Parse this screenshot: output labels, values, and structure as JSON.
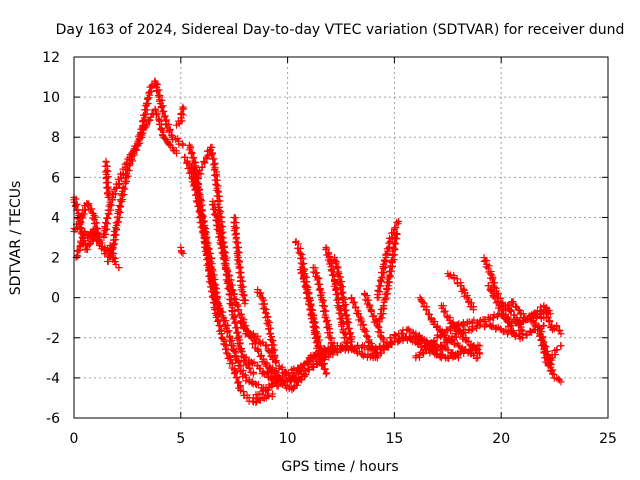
{
  "chart_data": {
    "type": "scatter",
    "title": "Day 163 of 2024, Sidereal Day-to-day VTEC variation (SDTVAR) for receiver dund",
    "xlabel": "GPS time / hours",
    "ylabel": "SDTVAR / TECUs",
    "xlim": [
      0,
      25
    ],
    "ylim": [
      -6,
      12
    ],
    "xticks": [
      0,
      5,
      10,
      15,
      20,
      25
    ],
    "yticks": [
      -6,
      -4,
      -2,
      0,
      2,
      4,
      6,
      8,
      10,
      12
    ],
    "grid": true,
    "marker": "+",
    "series": [
      {
        "name": "SDTVAR",
        "color": "#ff0000",
        "tracks": [
          {
            "x": [
              0.0,
              0.3,
              0.6,
              0.9,
              1.2,
              1.5,
              1.7,
              1.9,
              2.1
            ],
            "y": [
              3.3,
              3.8,
              4.7,
              4.2,
              2.8,
              2.2,
              2.6,
              1.8,
              1.5
            ]
          },
          {
            "x": [
              0.0,
              0.2,
              0.4,
              0.6,
              0.8,
              1.0,
              1.2
            ],
            "y": [
              5.0,
              4.2,
              3.0,
              2.4,
              2.8,
              3.2,
              2.6
            ]
          },
          {
            "x": [
              0.1,
              0.3,
              0.5,
              0.7,
              0.9,
              1.1
            ],
            "y": [
              2.0,
              2.6,
              3.3,
              3.0,
              3.4,
              2.9
            ]
          },
          {
            "x": [
              1.4,
              1.6,
              1.8,
              2.0,
              2.2,
              2.4,
              2.6,
              2.8,
              3.0,
              3.2,
              3.4,
              3.6,
              3.8,
              4.0,
              4.3,
              4.6,
              4.9,
              5.1
            ],
            "y": [
              3.0,
              4.2,
              5.0,
              5.5,
              6.0,
              6.5,
              7.0,
              7.3,
              7.8,
              8.5,
              9.6,
              10.5,
              10.8,
              10.0,
              8.8,
              8.0,
              7.8,
              7.6
            ]
          },
          {
            "x": [
              1.6,
              1.8,
              2.0,
              2.2,
              2.4,
              2.6,
              2.8,
              3.0,
              3.2,
              3.4,
              3.6,
              3.8,
              4.0,
              4.2,
              4.5,
              4.8
            ],
            "y": [
              1.8,
              2.4,
              3.6,
              4.8,
              5.8,
              6.6,
              7.2,
              7.6,
              8.2,
              8.6,
              9.0,
              9.4,
              8.8,
              8.0,
              7.6,
              7.2
            ]
          },
          {
            "x": [
              1.5,
              1.6
            ],
            "y": [
              6.8,
              5.0
            ]
          },
          {
            "x": [
              4.8,
              5.0,
              5.1
            ],
            "y": [
              8.6,
              8.8,
              9.5
            ]
          },
          {
            "x": [
              5.0,
              5.1
            ],
            "y": [
              2.5,
              2.2
            ]
          },
          {
            "x": [
              5.2,
              5.5,
              5.8,
              6.1,
              6.4,
              6.7,
              7.0,
              7.3,
              7.6,
              7.9,
              8.2,
              8.5,
              8.8,
              9.1
            ],
            "y": [
              7.0,
              6.2,
              4.8,
              3.0,
              1.2,
              -0.2,
              -1.0,
              -2.0,
              -3.0,
              -3.8,
              -4.2,
              -4.3,
              -4.5,
              -4.6
            ]
          },
          {
            "x": [
              5.4,
              5.7,
              6.0,
              6.3,
              6.6,
              6.9,
              7.2,
              7.5,
              7.8,
              8.1,
              8.4,
              8.7,
              9.0,
              9.3
            ],
            "y": [
              7.6,
              6.5,
              4.0,
              1.5,
              -0.5,
              -1.8,
              -2.8,
              -3.6,
              -4.6,
              -5.0,
              -5.2,
              -5.1,
              -5.0,
              -4.8
            ]
          },
          {
            "x": [
              5.5,
              5.8,
              6.1,
              6.4,
              6.6,
              6.8
            ],
            "y": [
              6.5,
              5.5,
              3.5,
              1.8,
              0.5,
              -0.8
            ]
          },
          {
            "x": [
              5.8,
              6.0,
              6.2,
              6.4,
              6.6,
              6.8,
              7.0,
              7.2,
              7.4,
              7.6,
              7.8,
              8.0,
              8.2,
              8.4
            ],
            "y": [
              6.0,
              6.5,
              7.0,
              7.5,
              6.5,
              4.5,
              2.5,
              0.8,
              -0.5,
              -1.5,
              -2.6,
              -3.2,
              -3.5,
              -3.8
            ]
          },
          {
            "x": [
              6.5,
              6.8,
              7.1,
              7.4,
              7.7,
              8.0,
              8.3,
              8.6,
              8.9,
              9.2,
              9.5,
              9.8
            ],
            "y": [
              4.8,
              3.2,
              1.6,
              0.4,
              -0.6,
              -1.4,
              -2.0,
              -2.6,
              -3.2,
              -3.6,
              -4.0,
              -4.2
            ]
          },
          {
            "x": [
              7.5,
              7.6,
              7.7,
              7.8,
              7.9,
              8.0
            ],
            "y": [
              4.0,
              3.0,
              2.0,
              1.0,
              0.3,
              -0.3
            ]
          },
          {
            "x": [
              7.8,
              8.1,
              8.4,
              8.7,
              9.0,
              9.3,
              9.6,
              9.9,
              10.2,
              10.5
            ],
            "y": [
              -1.2,
              -1.8,
              -1.8,
              -2.2,
              -2.4,
              -3.0,
              -3.4,
              -3.8,
              -4.0,
              -4.2
            ]
          },
          {
            "x": [
              8.6,
              8.8,
              9.0,
              9.2,
              9.4
            ],
            "y": [
              0.4,
              0.0,
              -0.8,
              -1.8,
              -3.0
            ]
          },
          {
            "x": [
              8.0,
              8.3,
              8.6,
              8.9,
              9.2,
              9.5,
              9.8,
              10.1,
              10.4,
              10.7,
              11.0,
              11.3
            ],
            "y": [
              -3.0,
              -3.2,
              -3.4,
              -3.8,
              -4.0,
              -4.4,
              -4.2,
              -4.0,
              -3.8,
              -3.5,
              -3.2,
              -3.0
            ]
          },
          {
            "x": [
              8.4,
              8.7,
              9.0,
              9.3,
              9.6,
              9.9,
              10.2,
              10.5,
              10.8,
              11.1,
              11.4,
              11.7,
              12.0
            ],
            "y": [
              -5.0,
              -4.8,
              -4.6,
              -4.3,
              -4.0,
              -3.8,
              -3.6,
              -3.5,
              -3.3,
              -3.0,
              -2.8,
              -2.6,
              -2.5
            ]
          },
          {
            "x": [
              9.0,
              9.3,
              9.6,
              9.9,
              10.2,
              10.5,
              10.8
            ],
            "y": [
              -3.8,
              -3.5,
              -4.0,
              -4.4,
              -4.6,
              -4.2,
              -3.9
            ]
          },
          {
            "x": [
              10.4,
              10.6,
              10.8,
              11.0,
              11.2,
              11.4,
              11.6,
              11.8
            ],
            "y": [
              2.8,
              2.2,
              1.2,
              0.0,
              -1.0,
              -2.0,
              -3.0,
              -3.8
            ]
          },
          {
            "x": [
              10.6,
              10.8,
              11.0,
              11.2,
              11.4,
              11.6
            ],
            "y": [
              1.4,
              0.8,
              -0.2,
              -1.2,
              -2.4,
              -3.4
            ]
          },
          {
            "x": [
              11.2,
              11.4,
              11.6,
              11.8,
              12.0,
              12.2
            ],
            "y": [
              1.5,
              1.0,
              0.0,
              -1.0,
              -2.0,
              -2.6
            ]
          },
          {
            "x": [
              11.8,
              12.0,
              12.2,
              12.4,
              12.6,
              12.8
            ],
            "y": [
              2.5,
              1.8,
              0.8,
              -0.4,
              -1.6,
              -2.4
            ]
          },
          {
            "x": [
              12.2,
              12.4,
              12.6,
              12.8,
              13.0
            ],
            "y": [
              2.0,
              1.2,
              0.0,
              -1.2,
              -2.2
            ]
          },
          {
            "x": [
              10.0,
              10.5,
              11.0,
              11.5,
              12.0,
              12.5,
              13.0,
              13.5,
              14.0,
              14.5,
              15.0,
              15.5,
              16.0,
              16.5,
              17.0,
              17.5,
              18.0,
              18.5,
              19.0
            ],
            "y": [
              -4.2,
              -4.0,
              -3.6,
              -3.2,
              -2.8,
              -2.6,
              -2.5,
              -2.4,
              -2.6,
              -2.4,
              -2.2,
              -2.0,
              -2.2,
              -2.6,
              -2.8,
              -3.0,
              -2.8,
              -2.6,
              -2.4
            ]
          },
          {
            "x": [
              11.0,
              11.5,
              12.0,
              12.5,
              13.0,
              13.5,
              14.0,
              14.5,
              15.0,
              15.5,
              16.0,
              16.5,
              17.0,
              17.5,
              18.0
            ],
            "y": [
              -3.0,
              -2.8,
              -2.6,
              -2.4,
              -2.6,
              -2.8,
              -3.0,
              -2.6,
              -2.2,
              -2.0,
              -2.0,
              -2.2,
              -2.4,
              -2.6,
              -3.0
            ]
          },
          {
            "x": [
              13.0,
              13.3,
              13.6,
              13.9,
              14.2
            ],
            "y": [
              0.0,
              -0.8,
              -1.6,
              -2.4,
              -3.0
            ]
          },
          {
            "x": [
              13.6,
              13.9,
              14.2,
              14.5
            ],
            "y": [
              0.2,
              -0.6,
              -1.4,
              -2.2
            ]
          },
          {
            "x": [
              14.2,
              14.4,
              14.6,
              14.8,
              15.0,
              15.2
            ],
            "y": [
              0.0,
              1.0,
              2.0,
              2.8,
              3.4,
              3.8
            ]
          },
          {
            "x": [
              14.3,
              14.5,
              14.7,
              14.9,
              15.1
            ],
            "y": [
              -1.2,
              -0.4,
              0.6,
              1.8,
              3.2
            ]
          },
          {
            "x": [
              14.8,
              15.2,
              15.6,
              16.0,
              16.4,
              16.8,
              17.2
            ],
            "y": [
              -2.0,
              -1.8,
              -1.6,
              -1.8,
              -2.2,
              -2.6,
              -3.0
            ]
          },
          {
            "x": [
              16.2,
              16.5,
              16.8,
              17.1,
              17.4,
              17.7,
              18.0,
              18.3,
              18.6,
              18.9
            ],
            "y": [
              0.0,
              -0.6,
              -1.2,
              -1.6,
              -2.0,
              -2.2,
              -2.4,
              -2.6,
              -2.8,
              -3.0
            ]
          },
          {
            "x": [
              17.2,
              17.5,
              17.8,
              18.1,
              18.4,
              18.7,
              19.0
            ],
            "y": [
              -0.4,
              -1.0,
              -1.4,
              -1.8,
              -2.2,
              -2.4,
              -2.8
            ]
          },
          {
            "x": [
              17.5,
              17.8,
              18.1,
              18.4,
              18.7
            ],
            "y": [
              1.2,
              1.0,
              0.6,
              0.0,
              -0.6
            ]
          },
          {
            "x": [
              16.0,
              16.5,
              17.0,
              17.5,
              18.0,
              18.5,
              19.0,
              19.5,
              20.0,
              20.5,
              21.0,
              21.5,
              22.0
            ],
            "y": [
              -3.0,
              -2.6,
              -2.0,
              -1.6,
              -1.4,
              -1.2,
              -1.2,
              -1.0,
              -0.8,
              -1.2,
              -1.2,
              -0.8,
              -1.0
            ]
          },
          {
            "x": [
              16.5,
              17.0,
              17.5,
              18.0,
              18.5,
              19.0,
              19.5,
              20.0,
              20.5,
              21.0,
              21.5,
              22.0
            ],
            "y": [
              -2.4,
              -2.6,
              -2.2,
              -1.8,
              -1.6,
              -1.4,
              -1.4,
              -1.6,
              -1.8,
              -2.0,
              -1.6,
              -1.4
            ]
          },
          {
            "x": [
              19.2,
              19.5,
              19.8,
              20.1,
              20.4,
              20.7,
              21.0
            ],
            "y": [
              2.0,
              1.2,
              0.2,
              -0.4,
              -0.6,
              -1.0,
              -1.8
            ]
          },
          {
            "x": [
              19.4,
              19.7,
              20.0,
              20.3,
              20.6
            ],
            "y": [
              0.6,
              0.0,
              -0.6,
              -1.2,
              -1.8
            ]
          },
          {
            "x": [
              20.2,
              20.5,
              20.8,
              21.1,
              21.4,
              21.7,
              22.0,
              22.3
            ],
            "y": [
              -0.6,
              -0.2,
              -0.6,
              -1.0,
              -1.2,
              -0.8,
              -0.4,
              -0.8
            ]
          },
          {
            "x": [
              21.5,
              21.8,
              22.0,
              22.2,
              22.4,
              22.6,
              22.8
            ],
            "y": [
              -1.2,
              -1.6,
              -2.2,
              -3.0,
              -3.8,
              -4.0,
              -4.2
            ]
          },
          {
            "x": [
              21.8,
              22.0,
              22.2,
              22.4,
              22.6,
              22.8
            ],
            "y": [
              -1.8,
              -2.6,
              -3.4,
              -3.0,
              -2.6,
              -2.4
            ]
          },
          {
            "x": [
              22.0,
              22.2,
              22.4,
              22.6,
              22.8
            ],
            "y": [
              -0.6,
              -1.0,
              -1.6,
              -1.4,
              -1.8
            ]
          }
        ]
      }
    ]
  }
}
